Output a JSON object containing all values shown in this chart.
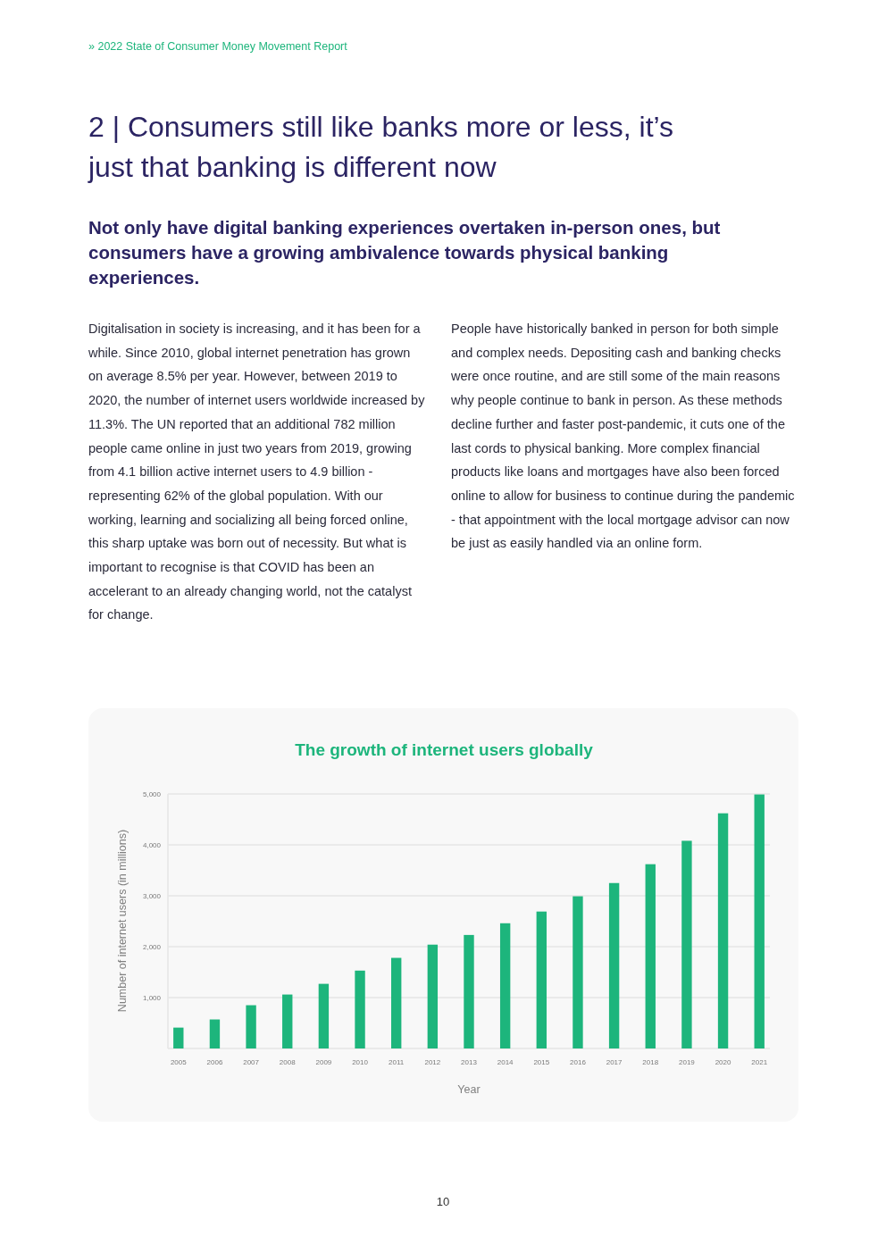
{
  "chart_data": {
    "type": "bar",
    "title": "The growth of internet users globally",
    "xlabel": "Year",
    "ylabel": "Number of internet users (in millions)",
    "categories": [
      "2005",
      "2006",
      "2007",
      "2008",
      "2009",
      "2010",
      "2011",
      "2012",
      "2013",
      "2014",
      "2015",
      "2016",
      "2017",
      "2018",
      "2019",
      "2020",
      "2021"
    ],
    "values": [
      410,
      570,
      850,
      1060,
      1270,
      1530,
      1780,
      2040,
      2230,
      2460,
      2690,
      2990,
      3250,
      3620,
      4080,
      4620,
      4990
    ],
    "color": "#1db57c",
    "ylim": [
      0,
      5000
    ],
    "yticks": [
      {
        "value": 1000,
        "label": "1,000"
      },
      {
        "value": 2000,
        "label": "2,000"
      },
      {
        "value": 3000,
        "label": "3,000"
      },
      {
        "value": 4000,
        "label": "4,000"
      },
      {
        "value": 5000,
        "label": "5,000"
      }
    ],
    "grid": "y",
    "annotations": [
      "» 2022 State of Consumer Money Movement Report",
      "2 | Consumers still like banks more or less, it’s just that banking is different now",
      "Not only have digital banking experiences overtaken in-person ones, but consumers have a growing ambivalence towards physical banking experiences.",
      "Digitalisation in society is increasing, and it has been for a while. Since 2010, global internet penetration has grown on average 8.5% per year. However, between 2019 to 2020, the number of internet users worldwide increased by 11.3%. The UN reported that an additional 782 million people came online in just two years from 2019, growing from 4.1 billion active internet users to 4.9 billion - representing 62% of the global population. With our working, learning and socializing all being forced online, this sharp uptake was born out of necessity. But what is important to recognise is that COVID has been an accelerant to an already changing world, not the catalyst for change.",
      "People have historically banked in person for both simple and complex needs. Depositing cash and banking checks were once routine, and are still some of the main reasons why people continue to bank in person. As these methods decline further and faster post-pandemic, it cuts one of the last cords to physical banking. More complex financial products like loans and mortgages have also been forced online to allow for business to continue during the pandemic - that appointment with the local mortgage advisor can now be just as easily handled via an online form.",
      "10"
    ]
  }
}
